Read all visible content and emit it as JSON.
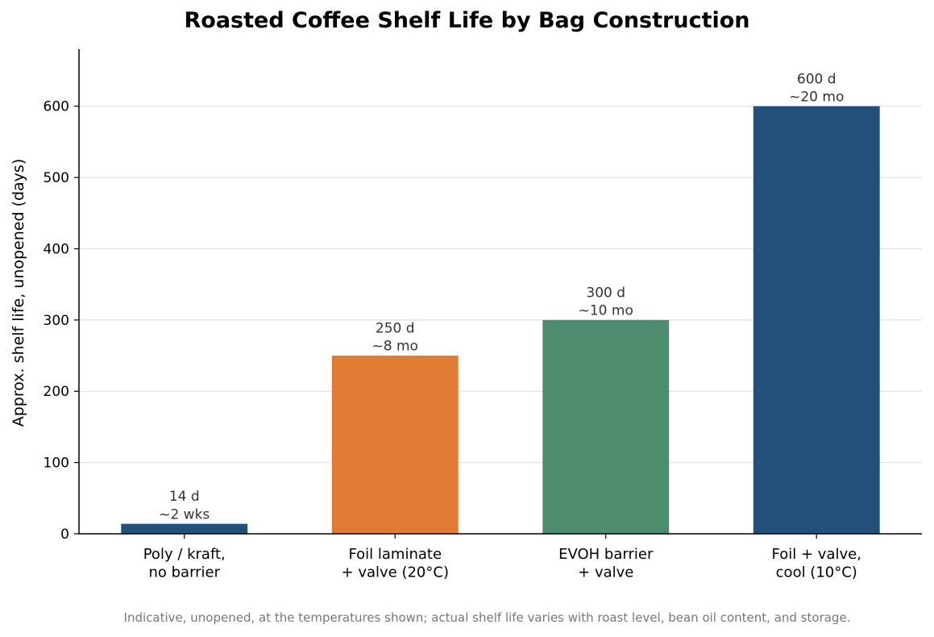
{
  "chart_data": {
    "type": "bar",
    "title": "Roasted Coffee Shelf Life by Bag Construction",
    "xlabel": "",
    "ylabel": "Approx. shelf life, unopened (days)",
    "ylim": [
      0,
      680
    ],
    "yticks": [
      0,
      100,
      200,
      300,
      400,
      500,
      600
    ],
    "grid": "horizontal",
    "categories": [
      [
        "Poly / kraft,",
        "no barrier"
      ],
      [
        "Foil laminate",
        "+ valve (20°C)"
      ],
      [
        "EVOH barrier",
        "+ valve"
      ],
      [
        "Foil + valve,",
        "cool (10°C)"
      ]
    ],
    "values": [
      14,
      250,
      300,
      600
    ],
    "data_labels": [
      [
        "14 d",
        "~2 wks"
      ],
      [
        "250 d",
        "~8 mo"
      ],
      [
        "300 d",
        "~10 mo"
      ],
      [
        "600 d",
        "~20 mo"
      ]
    ],
    "bar_colors": [
      "#21507a",
      "#e07b33",
      "#4e8c6f",
      "#21507a"
    ],
    "footnote": "Indicative, unopened, at the temperatures shown; actual shelf life varies with roast level, bean oil content, and storage."
  }
}
